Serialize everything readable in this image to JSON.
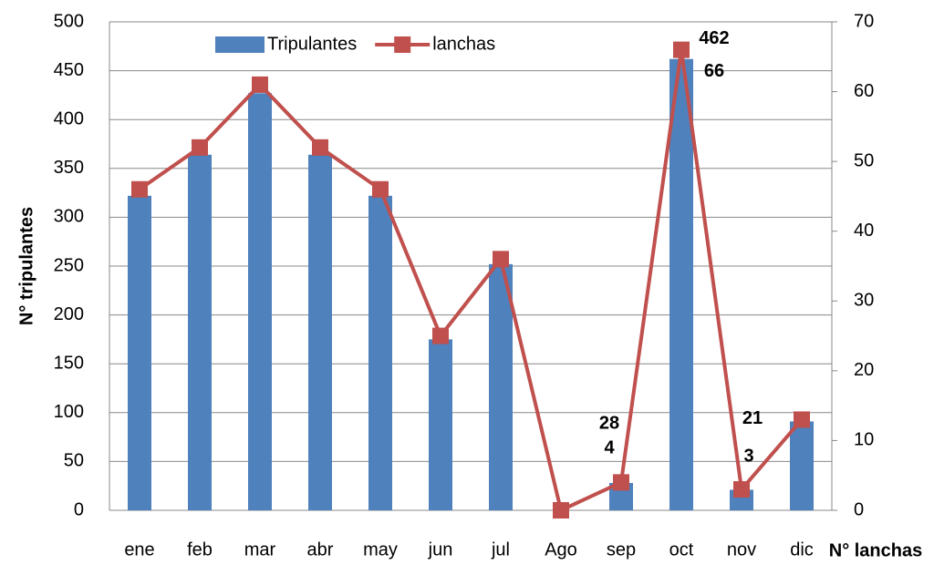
{
  "chart_data": {
    "type": "bar-line",
    "categories": [
      "ene",
      "feb",
      "mar",
      "abr",
      "may",
      "jun",
      "jul",
      "Ago",
      "sep",
      "oct",
      "nov",
      "dic"
    ],
    "series": [
      {
        "name": "Tripulantes",
        "type": "bar",
        "color": "#4f81bd",
        "values": [
          322,
          364,
          427,
          364,
          322,
          175,
          252,
          0,
          28,
          462,
          21,
          91
        ],
        "value_labels": [
          null,
          null,
          null,
          null,
          null,
          null,
          null,
          null,
          "28",
          "462",
          "21",
          null
        ]
      },
      {
        "name": "lanchas",
        "type": "line",
        "axis": "y2",
        "color": "#c0504d",
        "values": [
          46,
          52,
          61,
          52,
          46,
          25,
          36,
          0,
          4,
          66,
          3,
          13
        ],
        "value_labels": [
          null,
          null,
          null,
          null,
          null,
          null,
          null,
          null,
          "4",
          "66",
          "3",
          null
        ]
      }
    ],
    "y_label": "N° tripulantes",
    "y2_label": "N° lanchas",
    "ylim": [
      0,
      500
    ],
    "yticks": [
      0,
      50,
      100,
      150,
      200,
      250,
      300,
      350,
      400,
      450,
      500
    ],
    "y2lim": [
      0,
      70
    ],
    "y2ticks": [
      0,
      10,
      20,
      30,
      40,
      50,
      60,
      70
    ],
    "grid": true,
    "legend": "top"
  }
}
